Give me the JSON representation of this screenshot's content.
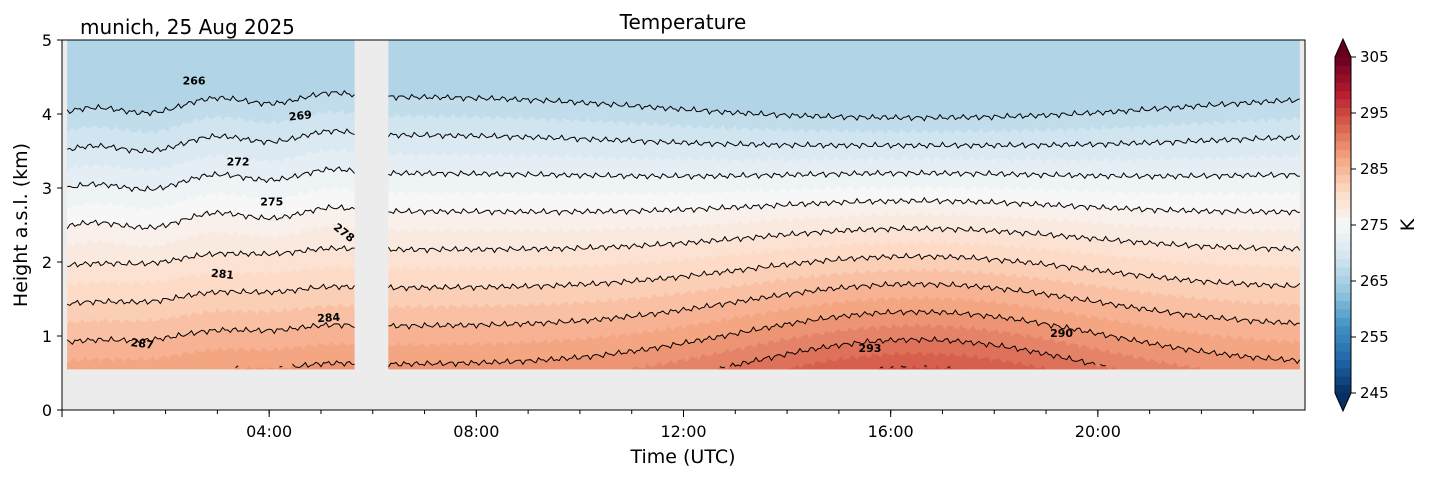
{
  "header": {
    "station_date": "munich, 25 Aug 2025"
  },
  "chart_data": {
    "type": "heatmap",
    "title": "Temperature",
    "xlabel": "Time (UTC)",
    "ylabel": "Height a.s.l. (km)",
    "xlim_hours": [
      0,
      24
    ],
    "ylim_km": [
      0,
      5
    ],
    "x_ticks": [
      {
        "hour": 4,
        "label": "04:00"
      },
      {
        "hour": 8,
        "label": "08:00"
      },
      {
        "hour": 12,
        "label": "12:00"
      },
      {
        "hour": 16,
        "label": "16:00"
      },
      {
        "hour": 20,
        "label": "20:00"
      }
    ],
    "y_ticks": [
      {
        "km": 0,
        "label": "0"
      },
      {
        "km": 1,
        "label": "1"
      },
      {
        "km": 2,
        "label": "2"
      },
      {
        "km": 3,
        "label": "3"
      },
      {
        "km": 4,
        "label": "4"
      },
      {
        "km": 5,
        "label": "5"
      }
    ],
    "data_bottom_km": 0.55,
    "data_gap_hours": [
      5.65,
      6.3
    ],
    "contour_levels": [
      266,
      269,
      272,
      275,
      278,
      281,
      284,
      287,
      290,
      293
    ],
    "contour_labels": [
      {
        "value": "266",
        "hour": 2.55,
        "km": 4.45,
        "angle": 0
      },
      {
        "value": "269",
        "hour": 4.6,
        "km": 3.98,
        "angle": -6
      },
      {
        "value": "272",
        "hour": 3.4,
        "km": 3.36,
        "angle": 0
      },
      {
        "value": "275",
        "hour": 4.05,
        "km": 2.82,
        "angle": 0
      },
      {
        "value": "278",
        "hour": 5.45,
        "km": 2.4,
        "angle": 38
      },
      {
        "value": "281",
        "hour": 3.1,
        "km": 1.84,
        "angle": 6
      },
      {
        "value": "284",
        "hour": 5.15,
        "km": 1.25,
        "angle": -4
      },
      {
        "value": "287",
        "hour": 1.55,
        "km": 0.9,
        "angle": 7
      },
      {
        "value": "290",
        "hour": 19.3,
        "km": 1.04,
        "angle": 0
      },
      {
        "value": "293",
        "hour": 15.6,
        "km": 0.84,
        "angle": 0
      }
    ],
    "colorbar": {
      "label": "K",
      "min": 245,
      "max": 305,
      "extend": "both",
      "ticks": [
        "305",
        "295",
        "285",
        "275",
        "265",
        "255",
        "245"
      ],
      "tick_values": [
        305,
        295,
        285,
        275,
        265,
        255,
        245
      ],
      "cmap": "RdBu_r"
    }
  }
}
